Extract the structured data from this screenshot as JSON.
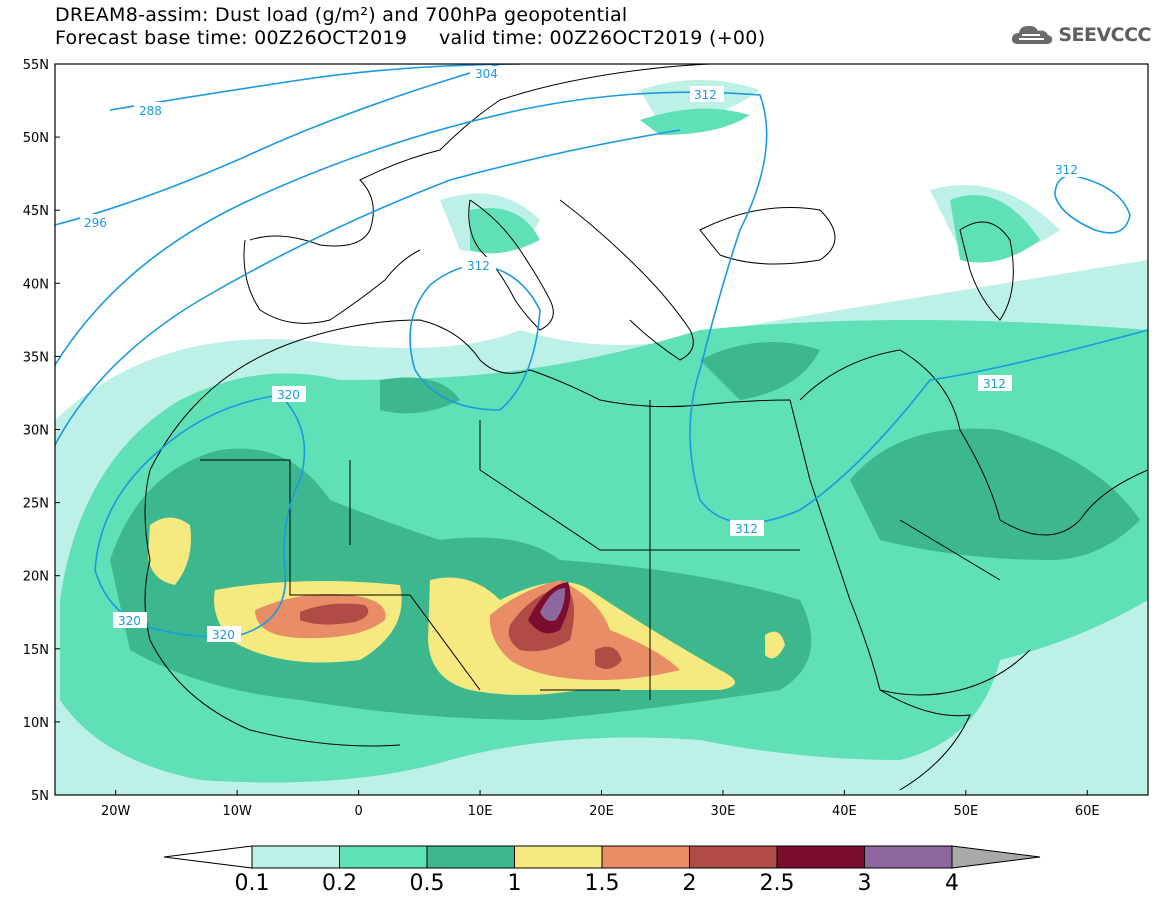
{
  "title": {
    "line1": "DREAM8-assim: Dust load (g/m²) and 700hPa geopotential",
    "line2": "Forecast base time: 00Z26OCT2019     valid time: 00Z26OCT2019 (+00)"
  },
  "logo": {
    "text": "SEEVCCC",
    "icon": "cloud-icon"
  },
  "map": {
    "region": "North Africa, Europe, Middle East",
    "projection": "cylindrical lat-lon",
    "lon_range": [
      -25,
      65
    ],
    "lat_range": [
      5,
      55
    ],
    "lat_ticks": [
      "55N",
      "50N",
      "45N",
      "40N",
      "35N",
      "30N",
      "25N",
      "20N",
      "15N",
      "10N",
      "5N"
    ],
    "lon_ticks": [
      "20W",
      "10W",
      "0",
      "10E",
      "20E",
      "30E",
      "40E",
      "50E",
      "60E"
    ],
    "contour_labels": [
      "288",
      "296",
      "304",
      "312",
      "312",
      "312",
      "312",
      "312",
      "320",
      "320",
      "320"
    ],
    "colors": {
      "contour": "#1a9ae0",
      "coast": "#000000"
    }
  },
  "colorbar": {
    "labels": [
      "0.1",
      "0.2",
      "0.5",
      "1",
      "1.5",
      "2",
      "2.5",
      "3",
      "4"
    ],
    "colors": [
      "#bdf0e6",
      "#5fe0b7",
      "#3cb78e",
      "#f5e97f",
      "#e98d66",
      "#b04b45",
      "#7d0d2f",
      "#8d679d",
      "#a9a9a9"
    ]
  }
}
